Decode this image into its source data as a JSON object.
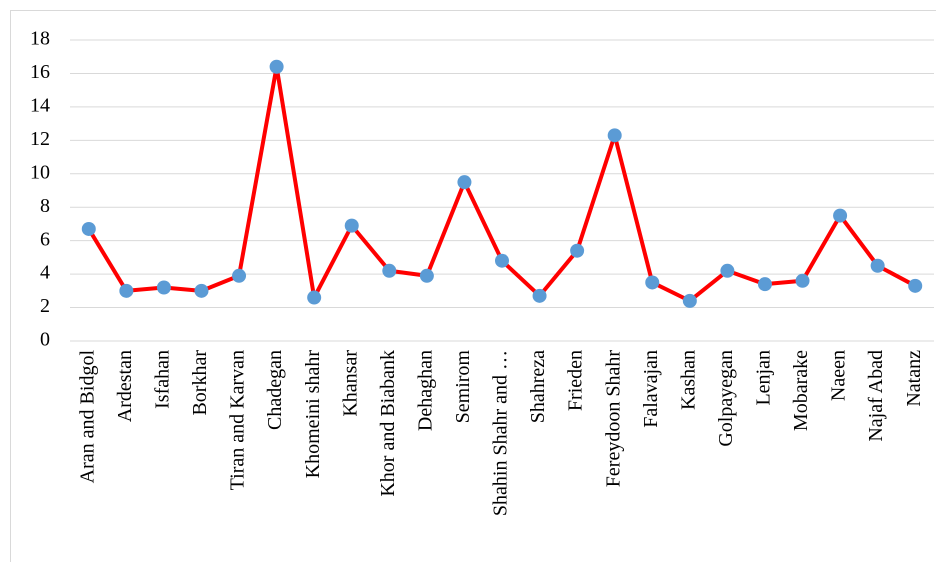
{
  "chart_data": {
    "type": "line",
    "categories": [
      "Aran and Bidgol",
      "Ardestan",
      "Isfahan",
      "Borkhar",
      "Tiran and Karvan",
      "Chadegan",
      "Khomeini shahr",
      "Khansar",
      "Khor and Biabank",
      "Dehaghan",
      "Semirom",
      "Shahin Shahr and …",
      "Shahreza",
      "Frieden",
      "Fereydoon Shahr",
      "Falavajan",
      "Kashan",
      "Golpayegan",
      "Lenjan",
      "Mobarake",
      "Naeen",
      "Najaf Abad",
      "Natanz"
    ],
    "values": [
      6.7,
      3.0,
      3.2,
      3.0,
      3.9,
      16.4,
      2.6,
      6.9,
      4.2,
      3.9,
      9.5,
      4.8,
      2.7,
      5.4,
      12.3,
      3.5,
      2.4,
      4.2,
      3.4,
      3.6,
      7.5,
      4.5,
      3.3
    ],
    "color": "#ff0000",
    "marker_color": "#5b9bd5",
    "ylim": [
      0,
      18
    ],
    "yticks": [
      0,
      2,
      4,
      6,
      8,
      10,
      12,
      14,
      16,
      18
    ],
    "grid": true
  }
}
